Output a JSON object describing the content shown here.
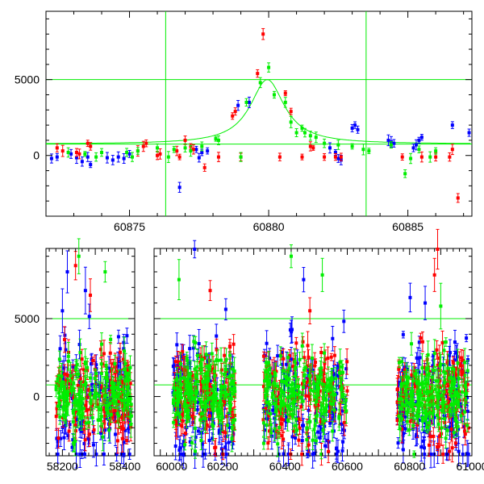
{
  "colors": {
    "blue": "#0000ff",
    "red": "#ff0000",
    "green": "#00ee00",
    "ref_line": "#00ee00",
    "frame": "#000000"
  },
  "chart_data": [
    {
      "type": "scatter",
      "title": "",
      "xlabel": "",
      "ylabel": "",
      "xlim": [
        60872.0,
        60887.3
      ],
      "ylim": [
        -4000,
        9500
      ],
      "xticks": [
        60875,
        60880,
        60885
      ],
      "xtick_labels": [
        "60875",
        "60880",
        "60885"
      ],
      "yticks": [
        0,
        5000
      ],
      "ytick_labels": [
        "0",
        "5000"
      ],
      "grid": false,
      "hlines": [
        5000,
        750
      ],
      "vlines": [
        60876.3,
        60883.5
      ],
      "model_curve": {
        "baseline": 750,
        "peak": 5000,
        "center": 60879.95,
        "width": 0.75
      },
      "series": [
        {
          "color": "blue",
          "points": [
            [
              60872.2,
              -200
            ],
            [
              60872.4,
              -100
            ],
            [
              60872.9,
              100
            ],
            [
              60873.1,
              -150
            ],
            [
              60873.3,
              -400
            ],
            [
              60873.5,
              -100
            ],
            [
              60873.6,
              -600
            ],
            [
              60874.2,
              -150
            ],
            [
              60874.4,
              -300
            ],
            [
              60874.6,
              -100
            ],
            [
              60874.8,
              -200
            ],
            [
              60875.0,
              100
            ],
            [
              60876.8,
              -2100
            ],
            [
              60877.4,
              400
            ],
            [
              60877.5,
              -150
            ],
            [
              60877.6,
              200
            ],
            [
              60877.8,
              300
            ],
            [
              60878.9,
              3300
            ],
            [
              60879.3,
              3500
            ],
            [
              60882.2,
              500
            ],
            [
              60882.4,
              200
            ],
            [
              60882.5,
              -200
            ],
            [
              60882.6,
              -300
            ],
            [
              60883.0,
              1800
            ],
            [
              60883.1,
              2000
            ],
            [
              60883.2,
              1700
            ],
            [
              60884.3,
              1000
            ],
            [
              60884.4,
              900
            ],
            [
              60884.5,
              800
            ],
            [
              60885.2,
              500
            ],
            [
              60885.3,
              700
            ],
            [
              60885.4,
              1000
            ],
            [
              60885.5,
              1200
            ],
            [
              60886.6,
              2000
            ],
            [
              60887.2,
              1500
            ]
          ]
        },
        {
          "color": "red",
          "points": [
            [
              60872.4,
              500
            ],
            [
              60872.6,
              300
            ],
            [
              60873.1,
              200
            ],
            [
              60873.2,
              100
            ],
            [
              60873.5,
              800
            ],
            [
              60873.6,
              600
            ],
            [
              60875.3,
              300
            ],
            [
              60875.5,
              600
            ],
            [
              60875.6,
              800
            ],
            [
              60876.0,
              0
            ],
            [
              60876.1,
              100
            ],
            [
              60876.7,
              300
            ],
            [
              60876.8,
              -100
            ],
            [
              60877.0,
              1000
            ],
            [
              60877.2,
              600
            ],
            [
              60877.3,
              400
            ],
            [
              60877.7,
              -800
            ],
            [
              60878.2,
              -100
            ],
            [
              60878.7,
              2600
            ],
            [
              60878.8,
              2900
            ],
            [
              60879.0,
              -100
            ],
            [
              60879.6,
              5400
            ],
            [
              60879.8,
              8000
            ],
            [
              60880.4,
              -100
            ],
            [
              60880.6,
              4100
            ],
            [
              60880.8,
              2900
            ],
            [
              60881.2,
              -100
            ],
            [
              60881.5,
              600
            ],
            [
              60881.6,
              500
            ],
            [
              60882.0,
              -100
            ],
            [
              60882.4,
              -100
            ],
            [
              60882.6,
              -100
            ],
            [
              60884.8,
              -100
            ],
            [
              60885.5,
              -100
            ],
            [
              60886.0,
              -100
            ],
            [
              60886.5,
              -100
            ],
            [
              60886.6,
              400
            ],
            [
              60886.8,
              -2800
            ]
          ]
        },
        {
          "color": "green",
          "points": [
            [
              60872.8,
              200
            ],
            [
              60873.4,
              100
            ],
            [
              60873.8,
              -100
            ],
            [
              60874.0,
              200
            ],
            [
              60874.9,
              200
            ],
            [
              60875.1,
              -100
            ],
            [
              60875.3,
              300
            ],
            [
              60876.0,
              500
            ],
            [
              60876.4,
              -100
            ],
            [
              60876.6,
              400
            ],
            [
              60877.0,
              500
            ],
            [
              60877.2,
              300
            ],
            [
              60877.6,
              600
            ],
            [
              60878.1,
              1100
            ],
            [
              60878.2,
              1000
            ],
            [
              60879.0,
              -100
            ],
            [
              60879.2,
              3500
            ],
            [
              60879.7,
              4800
            ],
            [
              60880.0,
              5800
            ],
            [
              60880.2,
              4000
            ],
            [
              60880.6,
              3500
            ],
            [
              60880.8,
              2200
            ],
            [
              60881.0,
              1500
            ],
            [
              60881.2,
              1800
            ],
            [
              60881.3,
              1500
            ],
            [
              60881.5,
              1300
            ],
            [
              60881.7,
              1200
            ],
            [
              60882.0,
              800
            ],
            [
              60882.5,
              700
            ],
            [
              60883.0,
              600
            ],
            [
              60883.4,
              400
            ],
            [
              60883.6,
              300
            ],
            [
              60884.4,
              700
            ],
            [
              60884.9,
              -1200
            ],
            [
              60885.1,
              -200
            ],
            [
              60885.4,
              400
            ],
            [
              60885.8,
              -100
            ],
            [
              60886.0,
              300
            ]
          ]
        }
      ]
    },
    {
      "type": "scatter",
      "title": "",
      "xlabel": "",
      "ylabel": "",
      "xlim": [
        58150,
        61000
      ],
      "broken_axis": {
        "segment1": [
          58150,
          58420
        ],
        "segment2": [
          59980,
          61000
        ]
      },
      "ylim": [
        -3800,
        9500
      ],
      "xticks": [
        58200,
        58400,
        60000,
        60200,
        60400,
        60600,
        60800,
        61000
      ],
      "xtick_labels": [
        "58200",
        "58400",
        "60000",
        "60200",
        "60400",
        "60600",
        "60800",
        "61000"
      ],
      "yticks": [
        0,
        5000
      ],
      "ytick_labels": [
        "0",
        "5000"
      ],
      "grid": false,
      "hlines": [
        5000,
        750
      ],
      "observing_seasons": [
        [
          58180,
          58410
        ],
        [
          60040,
          60240
        ],
        [
          60330,
          60600
        ],
        [
          60760,
          60990
        ]
      ],
      "series": [
        {
          "color": "blue",
          "spread": 2200,
          "outliers": [
            [
              58215,
              8000
            ],
            [
              58270,
              6800
            ],
            [
              58200,
              5500
            ],
            [
              60110,
              9500
            ],
            [
              60460,
              7500
            ],
            [
              60850,
              6000
            ]
          ]
        },
        {
          "color": "red",
          "spread": 1900,
          "outliers": [
            [
              58240,
              8400
            ],
            [
              58285,
              6500
            ],
            [
              60160,
              6800
            ],
            [
              60480,
              5500
            ],
            [
              60880,
              7800
            ],
            [
              60890,
              9500
            ]
          ]
        },
        {
          "color": "green",
          "spread": 1500,
          "outliers": [
            [
              58250,
              9000
            ],
            [
              58330,
              8000
            ],
            [
              60060,
              7500
            ],
            [
              60420,
              9000
            ],
            [
              60520,
              7800
            ],
            [
              60900,
              5800
            ]
          ]
        }
      ]
    }
  ]
}
